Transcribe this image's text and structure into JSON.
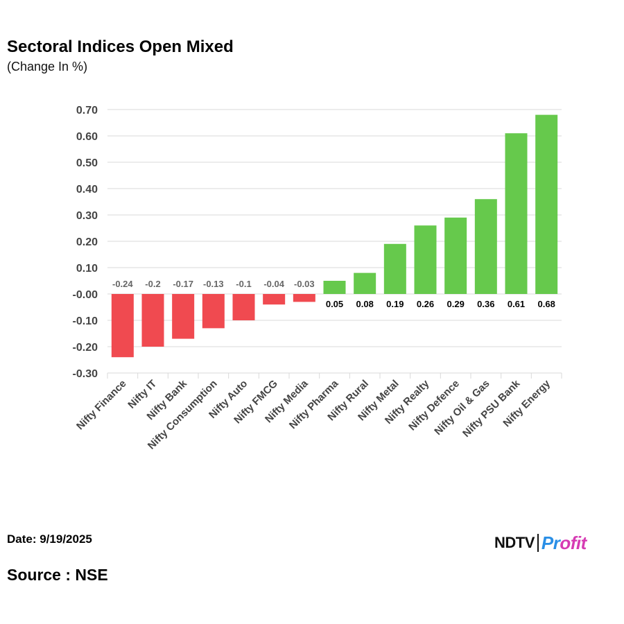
{
  "header": {
    "title": "Sectoral Indices Open Mixed",
    "subtitle": "(Change In %)"
  },
  "footer": {
    "date": "Date: 9/19/2025",
    "source": "Source : NSE",
    "logo_left": "NDTV",
    "logo_right_prefix": "Pr",
    "logo_right_suffix": "ofit"
  },
  "colors": {
    "negative": "#f04a50",
    "positive": "#66c94c",
    "grid": "#d9d9d9"
  },
  "chart_data": {
    "type": "bar",
    "title": "Sectoral Indices Open Mixed",
    "subtitle": "(Change In %)",
    "categories": [
      "Nifty Finance",
      "Nifty IT",
      "Nifty Bank",
      "Nifty Consumption",
      "Nifty Auto",
      "Nifty FMCG",
      "Nifty Media",
      "Nifty Pharma",
      "Nifty Rural",
      "Nifty Metal",
      "Nifty Realty",
      "Nifty Defence",
      "Nifty Oil & Gas",
      "Nifty PSU Bank",
      "Nifty Energy"
    ],
    "values": [
      -0.24,
      -0.2,
      -0.17,
      -0.13,
      -0.1,
      -0.04,
      -0.03,
      0.05,
      0.08,
      0.19,
      0.26,
      0.29,
      0.36,
      0.61,
      0.68
    ],
    "data_labels": [
      "-0.24",
      "-0.2",
      "-0.17",
      "-0.13",
      "-0.1",
      "-0.04",
      "-0.03",
      "0.05",
      "0.08",
      "0.19",
      "0.26",
      "0.29",
      "0.36",
      "0.61",
      "0.68"
    ],
    "ylim": [
      -0.3,
      0.7
    ],
    "yticks": [
      0.7,
      0.6,
      0.5,
      0.4,
      0.3,
      0.2,
      0.1,
      0.0,
      -0.1,
      -0.2,
      -0.3
    ],
    "ytick_labels": [
      "0.70",
      "0.60",
      "0.50",
      "0.40",
      "0.30",
      "0.20",
      "0.10",
      "-0.00",
      "-0.10",
      "-0.20",
      "-0.30"
    ],
    "xlabel": "",
    "ylabel": "",
    "grid": true,
    "legend": "none"
  }
}
